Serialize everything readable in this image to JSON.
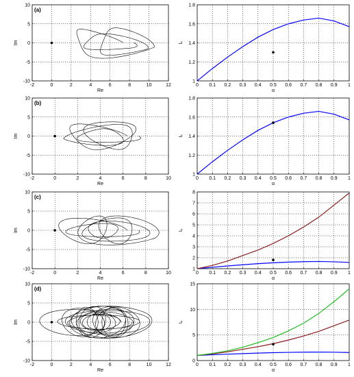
{
  "figure": {
    "chart_data": [
      {
        "type": "line",
        "panel_label": "(a)",
        "xlabel": "Re",
        "ylabel": "Im",
        "xlim": [
          -2,
          12
        ],
        "ylim": [
          -10,
          10
        ],
        "xticks": [
          -2,
          0,
          2,
          4,
          6,
          8,
          10,
          12
        ],
        "yticks": [
          -10,
          -5,
          0,
          5,
          10
        ],
        "grid": true,
        "marker": {
          "x": 0,
          "y": 0
        },
        "series": [
          {
            "color": "#000000",
            "x_center": 5.2,
            "x_radius": 4.8,
            "y_radius": 9.0,
            "loops": 3
          }
        ]
      },
      {
        "type": "line",
        "xlabel": "α",
        "ylabel": "Iₓ",
        "xlim": [
          0,
          1
        ],
        "ylim": [
          1,
          1.8
        ],
        "xticks": [
          0,
          0.1,
          0.2,
          0.3,
          0.4,
          0.5,
          0.6,
          0.7,
          0.8,
          0.9,
          1
        ],
        "yticks": [
          1,
          1.2,
          1.4,
          1.6,
          1.8
        ],
        "grid": true,
        "marker": {
          "x": 0.5,
          "y": 1.3
        },
        "series": [
          {
            "color": "#0000ff",
            "x": [
              0,
              0.1,
              0.2,
              0.3,
              0.4,
              0.5,
              0.6,
              0.7,
              0.8,
              0.9,
              1
            ],
            "y": [
              1.0,
              1.13,
              1.25,
              1.36,
              1.46,
              1.54,
              1.6,
              1.64,
              1.66,
              1.63,
              1.57
            ]
          }
        ]
      },
      {
        "type": "line",
        "panel_label": "(b)",
        "xlabel": "Re",
        "ylabel": "Im",
        "xlim": [
          -2,
          10
        ],
        "ylim": [
          -10,
          10
        ],
        "xticks": [
          -2,
          0,
          2,
          4,
          6,
          8,
          10
        ],
        "yticks": [
          -10,
          -5,
          0,
          5,
          10
        ],
        "grid": true,
        "marker": {
          "x": 0,
          "y": 0
        },
        "series": [
          {
            "color": "#000000",
            "x_center": 4.4,
            "x_radius": 4.4,
            "y_radius": 8.2,
            "loops": 4
          }
        ]
      },
      {
        "type": "line",
        "xlabel": "α",
        "ylabel": "Iₓ",
        "xlim": [
          0,
          1
        ],
        "ylim": [
          1,
          1.8
        ],
        "xticks": [
          0,
          0.1,
          0.2,
          0.3,
          0.4,
          0.5,
          0.6,
          0.7,
          0.8,
          0.9,
          1
        ],
        "yticks": [
          1,
          1.2,
          1.4,
          1.6,
          1.8
        ],
        "grid": true,
        "marker": {
          "x": 0.5,
          "y": 1.54
        },
        "series": [
          {
            "color": "#0000ff",
            "x": [
              0,
              0.1,
              0.2,
              0.3,
              0.4,
              0.5,
              0.6,
              0.7,
              0.8,
              0.9,
              1
            ],
            "y": [
              1.0,
              1.13,
              1.25,
              1.36,
              1.46,
              1.54,
              1.6,
              1.64,
              1.66,
              1.63,
              1.57
            ]
          }
        ]
      },
      {
        "type": "line",
        "panel_label": "(c)",
        "xlabel": "Re",
        "ylabel": "Im",
        "xlim": [
          -2,
          10
        ],
        "ylim": [
          -10,
          10
        ],
        "xticks": [
          -2,
          0,
          2,
          4,
          6,
          8,
          10
        ],
        "yticks": [
          -10,
          -5,
          0,
          5,
          10
        ],
        "grid": true,
        "marker": {
          "x": 0,
          "y": 0
        },
        "series": [
          {
            "color": "#000000",
            "x_center": 4.4,
            "x_radius": 4.4,
            "y_radius": 8.4,
            "loops": 6
          }
        ]
      },
      {
        "type": "line",
        "xlabel": "α",
        "ylabel": "Iₓ",
        "xlim": [
          0,
          1
        ],
        "ylim": [
          1,
          8
        ],
        "xticks": [
          0,
          0.1,
          0.2,
          0.3,
          0.4,
          0.5,
          0.6,
          0.7,
          0.8,
          0.9,
          1
        ],
        "yticks": [
          1,
          2,
          3,
          4,
          5,
          6,
          7,
          8
        ],
        "grid": true,
        "marker": {
          "x": 0.5,
          "y": 1.8
        },
        "series": [
          {
            "color": "#0000ff",
            "x": [
              0,
              0.1,
              0.2,
              0.3,
              0.4,
              0.5,
              0.6,
              0.7,
              0.8,
              0.9,
              1
            ],
            "y": [
              1.0,
              1.13,
              1.25,
              1.36,
              1.46,
              1.54,
              1.6,
              1.64,
              1.66,
              1.63,
              1.57
            ]
          },
          {
            "color": "#8b1a1a",
            "x": [
              0,
              0.1,
              0.2,
              0.3,
              0.4,
              0.5,
              0.6,
              0.7,
              0.8,
              0.9,
              1
            ],
            "y": [
              1.0,
              1.3,
              1.7,
              2.2,
              2.7,
              3.3,
              4.0,
              4.8,
              5.7,
              6.8,
              7.9
            ]
          }
        ]
      },
      {
        "type": "line",
        "panel_label": "(d)",
        "xlabel": "Re",
        "ylabel": "Im",
        "xlim": [
          -2,
          12
        ],
        "ylim": [
          -10,
          10
        ],
        "xticks": [
          -2,
          0,
          2,
          4,
          6,
          8,
          10,
          12
        ],
        "yticks": [
          -10,
          -5,
          0,
          5,
          10
        ],
        "grid": true,
        "marker": {
          "x": 0,
          "y": 0
        },
        "series": [
          {
            "color": "#000000",
            "x_center": 5.0,
            "x_radius": 4.8,
            "y_radius": 9.2,
            "loops": 16
          }
        ]
      },
      {
        "type": "line",
        "xlabel": "α",
        "ylabel": "Iₓ",
        "xlim": [
          0,
          1
        ],
        "ylim": [
          0,
          15
        ],
        "xticks": [
          0,
          0.1,
          0.2,
          0.3,
          0.4,
          0.5,
          0.6,
          0.7,
          0.8,
          0.9,
          1
        ],
        "yticks": [
          0,
          5,
          10,
          15
        ],
        "grid": true,
        "marker": {
          "x": 0.5,
          "y": 3.2
        },
        "series": [
          {
            "color": "#0000ff",
            "x": [
              0,
              0.1,
              0.2,
              0.3,
              0.4,
              0.5,
              0.6,
              0.7,
              0.8,
              0.9,
              1
            ],
            "y": [
              1.0,
              1.13,
              1.25,
              1.36,
              1.46,
              1.54,
              1.6,
              1.64,
              1.66,
              1.63,
              1.57
            ]
          },
          {
            "color": "#8b1a1a",
            "x": [
              0,
              0.1,
              0.2,
              0.3,
              0.4,
              0.5,
              0.6,
              0.7,
              0.8,
              0.9,
              1
            ],
            "y": [
              1.0,
              1.3,
              1.7,
              2.2,
              2.7,
              3.3,
              4.0,
              4.8,
              5.7,
              6.8,
              7.9
            ]
          },
          {
            "color": "#22bb22",
            "x": [
              0,
              0.1,
              0.2,
              0.3,
              0.4,
              0.5,
              0.6,
              0.7,
              0.8,
              0.9,
              1
            ],
            "y": [
              1.0,
              1.4,
              1.9,
              2.6,
              3.5,
              4.5,
              5.8,
              7.3,
              9.2,
              11.5,
              14.0
            ]
          }
        ]
      }
    ]
  }
}
